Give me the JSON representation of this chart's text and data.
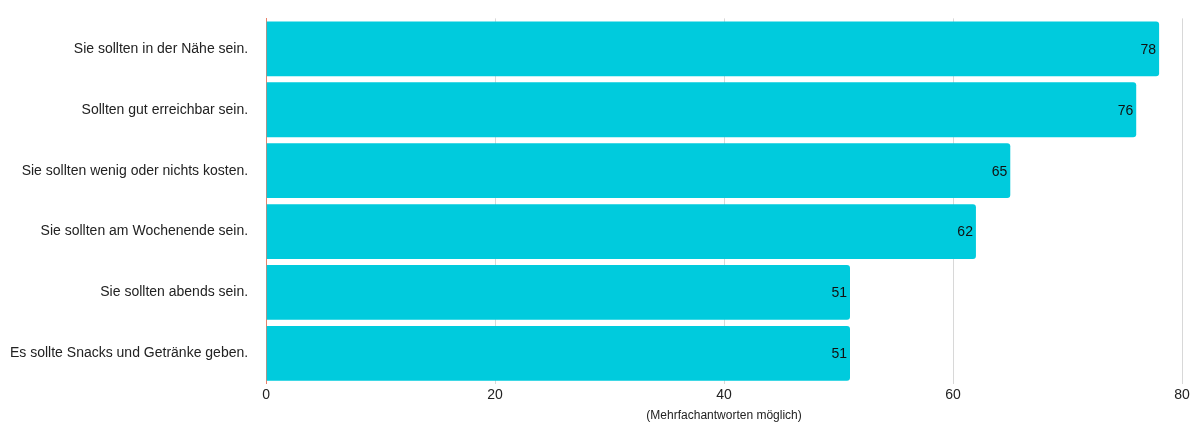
{
  "chart_data": {
    "type": "bar",
    "orientation": "horizontal",
    "xlabel": "(Mehrfachantworten möglich)",
    "categories": [
      "Sie sollten in der Nähe sein.",
      "Sollten gut erreichbar sein.",
      "Sie sollten wenig oder nichts kosten.",
      "Sie sollten am Wochenende sein.",
      "Sie sollten abends sein.",
      "Es sollte Snacks und Getränke geben."
    ],
    "values": [
      78,
      76,
      65,
      62,
      51,
      51
    ],
    "color": "#00cbdd",
    "xlim": [
      0,
      80
    ],
    "xticks": [
      0,
      20,
      40,
      60,
      80
    ],
    "grid": "x",
    "data_labels": true
  }
}
